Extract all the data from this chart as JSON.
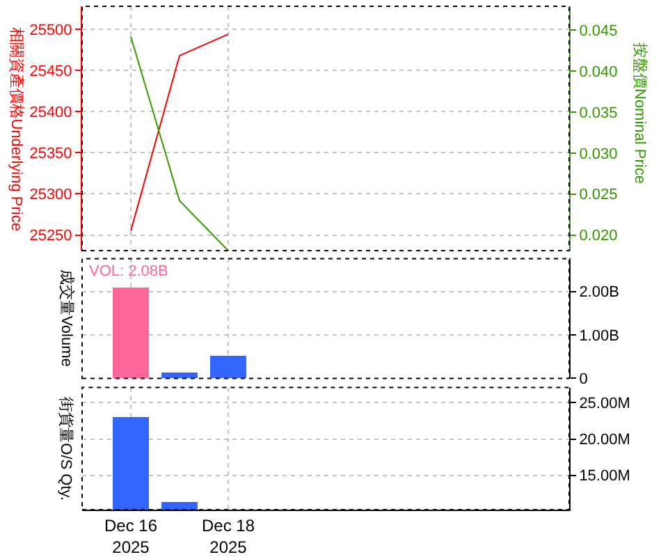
{
  "chart_data": [
    {
      "type": "line",
      "x": [
        "2025-12-16",
        "2025-12-17",
        "2025-12-18"
      ],
      "xlim": [
        "2025-12-15",
        "2025-12-25"
      ],
      "xticks": [
        {
          "value": "2025-12-16",
          "label": null
        },
        {
          "value": "2025-12-18",
          "label": null
        }
      ],
      "ylim": [
        25231,
        25528
      ],
      "yticks": [
        25250,
        25300,
        25350,
        25400,
        25450,
        25500
      ],
      "y2lim": [
        0.0181,
        0.0479
      ],
      "y2ticks": [
        {
          "value": 0.02,
          "label": "0.020"
        },
        0.025,
        {
          "value": 0.03,
          "label": "0.030"
        },
        0.035,
        {
          "value": 0.04,
          "label": "0.040"
        },
        0.045
      ],
      "ylabel": "相關資產價格Underlying Price",
      "y2label": "按盤價Nominal Price",
      "series": [
        {
          "color": "#ff0000",
          "values": [
            25255,
            25468,
            25494
          ]
        },
        {
          "color": "#339900",
          "axis": "y2",
          "values": [
            0.0442,
            0.0242,
            0.0181
          ]
        }
      ],
      "grid": true,
      "tick_labels": "y"
    },
    {
      "type": "bar",
      "x": [
        "2025-12-16",
        "2025-12-17",
        "2025-12-18"
      ],
      "xlim": [
        "2025-12-15",
        "2025-12-25"
      ],
      "xticks": [
        {
          "value": "2025-12-16",
          "label": null
        },
        {
          "value": "2025-12-18",
          "label": null
        }
      ],
      "ylim": [
        0,
        2760000000
      ],
      "yticks": [
        0,
        {
          "value": 1000000000,
          "label": "1.00B"
        },
        {
          "value": 2000000000,
          "label": "2.00B"
        }
      ],
      "ylabel": "成交量Volume",
      "values": [
        2080000000,
        130000000,
        520000000
      ],
      "colors": [
        "#ff6699",
        "#3366ff",
        "#3366ff"
      ],
      "annotations": [
        "VOL: 2.08B"
      ],
      "grid": true,
      "tick_labels": "y"
    },
    {
      "type": "bar",
      "x": [
        "2025-12-16",
        "2025-12-17"
      ],
      "xlim": [
        "2025-12-15",
        "2025-12-25"
      ],
      "xticks": [
        {
          "value": "2025-12-16",
          "label": "Dec 16\n2025"
        },
        {
          "value": "2025-12-18",
          "label": "Dec 18\n2025"
        }
      ],
      "ylim": [
        10250000,
        27100000
      ],
      "yticks": [
        {
          "value": 15000000,
          "label": "15.00M"
        },
        {
          "value": 20000000,
          "label": "20.00M"
        },
        {
          "value": 25000000,
          "label": "25.00M"
        }
      ],
      "ylabel": "街貨量O/S Qty.",
      "values": [
        23100000,
        11400000
      ],
      "color": "#3366ff",
      "grid": true
    }
  ]
}
